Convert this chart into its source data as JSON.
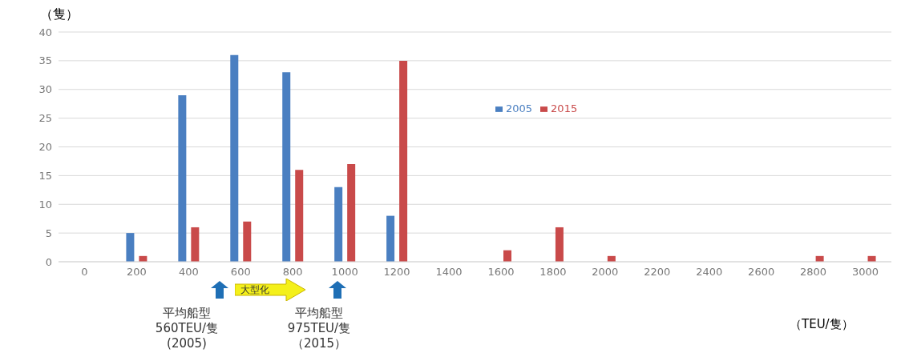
{
  "chart_data": {
    "type": "bar",
    "categories": [
      "0",
      "200",
      "400",
      "600",
      "800",
      "1000",
      "1200",
      "1400",
      "1600",
      "1800",
      "2000",
      "2200",
      "2400",
      "2600",
      "2800",
      "3000"
    ],
    "series": [
      {
        "name": "2005",
        "color": "#4a7fc1",
        "values": [
          0,
          5,
          29,
          36,
          33,
          13,
          8,
          0,
          0,
          0,
          0,
          0,
          0,
          0,
          0,
          0
        ]
      },
      {
        "name": "2015",
        "color": "#c94a4a",
        "values": [
          0,
          1,
          6,
          7,
          16,
          17,
          35,
          0,
          2,
          6,
          1,
          0,
          0,
          0,
          1,
          1
        ]
      }
    ],
    "ylim": [
      0,
      40
    ],
    "yticks": [
      0,
      5,
      10,
      15,
      20,
      25,
      30,
      35,
      40
    ],
    "ylabel": "（隻）",
    "xlabel": "（TEU/隻）",
    "annotations": [
      "大型化",
      "平均船型",
      "560TEU/隻",
      "(2005)",
      "平均船型",
      "975TEU/隻",
      "（2015）"
    ],
    "grid": "y",
    "legend": "top right"
  }
}
